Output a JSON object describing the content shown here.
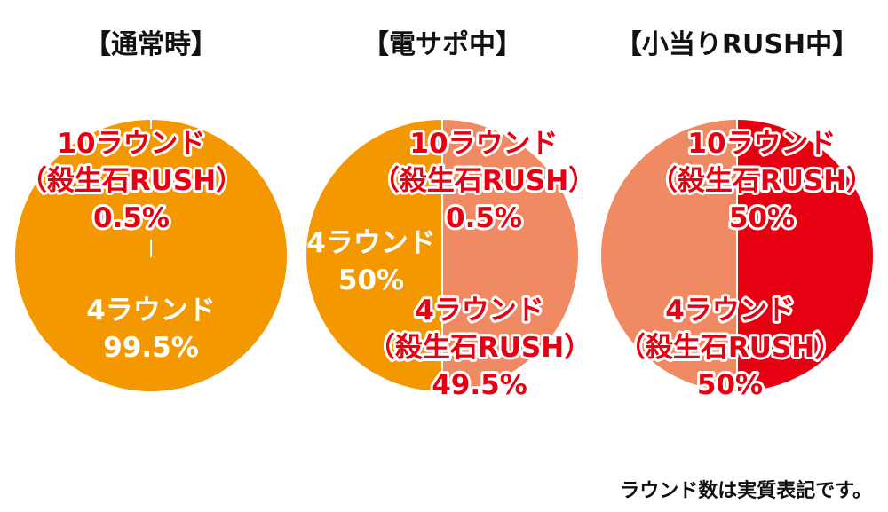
{
  "colors": {
    "orange": "#f39800",
    "salmon": "#ef8a62",
    "red": "#e60012",
    "text": "#111111",
    "white": "#ffffff"
  },
  "footnote": "ラウンド数は実質表記です。",
  "chart_data": [
    {
      "type": "pie",
      "title": "【通常時】",
      "slices": [
        {
          "label_lines": [
            "10ラウンド",
            "（殺生石RUSH）",
            "0.5%"
          ],
          "value": 0.5,
          "color": "#f39800",
          "label_style": "red"
        },
        {
          "label_lines": [
            "4ラウンド",
            "99.5%"
          ],
          "value": 99.5,
          "color": "#f39800",
          "label_style": "white"
        }
      ]
    },
    {
      "type": "pie",
      "title": "【電サポ中】",
      "slices": [
        {
          "label_lines": [
            "10ラウンド",
            "（殺生石RUSH）",
            "0.5%"
          ],
          "value": 0.5,
          "color": "#ef8a62",
          "label_style": "red"
        },
        {
          "label_lines": [
            "4ラウンド",
            "（殺生石RUSH）",
            "49.5%"
          ],
          "value": 49.5,
          "color": "#ef8a62",
          "label_style": "red"
        },
        {
          "label_lines": [
            "4ラウンド",
            "50%"
          ],
          "value": 50,
          "color": "#f39800",
          "label_style": "white"
        }
      ]
    },
    {
      "type": "pie",
      "title": "【小当りRUSH中】",
      "slices": [
        {
          "label_lines": [
            "10ラウンド",
            "（殺生石RUSH）",
            "50%"
          ],
          "value": 50,
          "color": "#e60012",
          "label_style": "red"
        },
        {
          "label_lines": [
            "4ラウンド",
            "（殺生石RUSH）",
            "50%"
          ],
          "value": 50,
          "color": "#ef8a62",
          "label_style": "red"
        }
      ]
    }
  ]
}
